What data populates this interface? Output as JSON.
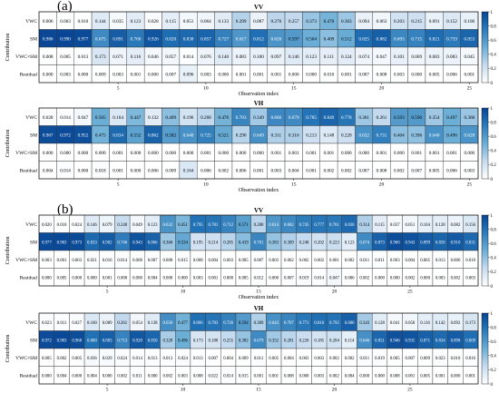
{
  "panel_labels": [
    "(a)",
    "(b)"
  ],
  "chart_data": [
    {
      "type": "heatmap",
      "panel": "(a)",
      "title": "VV",
      "xlabel": "Observation index",
      "ylabel": "Contribution",
      "rows": [
        "VWC",
        "SM",
        "VWC×SM",
        "Residual"
      ],
      "x_ticks": [
        5,
        10,
        15,
        20,
        25
      ],
      "colorbar_ticks": [
        "0",
        "0.2",
        "0.4",
        "0.6",
        "0.8",
        "1"
      ],
      "vmin": 0,
      "vmax": 1,
      "values": [
        [
          0.006,
          0.003,
          0.01,
          0.144,
          0.035,
          0.123,
          0.028,
          0.115,
          0.051,
          0.064,
          0.133,
          0.299,
          0.087,
          0.276,
          0.257,
          0.373,
          0.47,
          0.363,
          0.094,
          0.063,
          0.203,
          0.215,
          0.091,
          0.152,
          0.1
        ],
        [
          0.986,
          0.99,
          0.977,
          0.675,
          0.891,
          0.76,
          0.926,
          0.82,
          0.838,
          0.857,
          0.727,
          0.617,
          0.812,
          0.626,
          0.597,
          0.504,
          0.409,
          0.512,
          0.825,
          0.882,
          0.693,
          0.715,
          0.821,
          0.759,
          0.853
        ],
        [
          0.008,
          0.005,
          0.013,
          0.173,
          0.071,
          0.116,
          0.046,
          0.057,
          0.014,
          0.076,
          0.14,
          0.083,
          0.1,
          0.097,
          0.146,
          0.123,
          0.111,
          0.124,
          0.074,
          0.047,
          0.101,
          0.069,
          0.083,
          0.083,
          0.045
        ],
        [
          0.0,
          0.003,
          0.0,
          0.009,
          0.003,
          0.001,
          0.0,
          0.007,
          0.096,
          0.003,
          0.0,
          0.001,
          0.001,
          0.001,
          0.0,
          0.0,
          0.01,
          0.001,
          0.007,
          0.008,
          0.003,
          0.0,
          0.005,
          0.006,
          0.001
        ]
      ]
    },
    {
      "type": "heatmap",
      "panel": "(a)",
      "title": "VH",
      "xlabel": "Observation index",
      "ylabel": "Contribution",
      "rows": [
        "VWC",
        "SM",
        "VWC×SM",
        "Residual"
      ],
      "x_ticks": [
        5,
        10,
        15,
        20,
        25
      ],
      "colorbar_ticks": [
        "0",
        "0.2",
        "0.4",
        "0.6",
        "0.8",
        "1"
      ],
      "vmin": 0,
      "vmax": 1,
      "values": [
        [
          0.028,
          0.014,
          0.047,
          0.505,
          0.164,
          0.447,
          0.132,
          0.409,
          0.196,
          0.268,
          0.476,
          0.703,
          0.349,
          0.686,
          0.679,
          0.785,
          0.849,
          0.778,
          0.361,
          0.261,
          0.593,
          0.596,
          0.354,
          0.497,
          0.368
        ],
        [
          0.967,
          0.972,
          0.952,
          0.475,
          0.834,
          0.552,
          0.862,
          0.582,
          0.64,
          0.725,
          0.521,
          0.29,
          0.649,
          0.311,
          0.316,
          0.213,
          0.148,
          0.22,
          0.632,
          0.731,
          0.404,
          0.396,
          0.64,
          0.496,
          0.628
        ],
        [
          0.0,
          0.0,
          0.0,
          0.0,
          0.001,
          0.0,
          0.0,
          0.0,
          0.0,
          0.001,
          0.0,
          0.0,
          0.0,
          0.001,
          0.001,
          0.001,
          0.001,
          0.0,
          0.0,
          0.001,
          0.0,
          0.001,
          0.001,
          0.001,
          0.0
        ],
        [
          0.004,
          0.014,
          0.0,
          0.018,
          0.001,
          0.0,
          0.006,
          0.009,
          0.164,
          0.006,
          0.002,
          0.006,
          0.001,
          0.003,
          0.004,
          0.001,
          0.002,
          0.002,
          0.007,
          0.008,
          0.002,
          0.007,
          0.005,
          0.006,
          0.003
        ]
      ]
    },
    {
      "type": "heatmap",
      "panel": "(b)",
      "title": "VV",
      "xlabel": "Observation index",
      "ylabel": "Contribution",
      "rows": [
        "VWC",
        "SM",
        "VWC×SM",
        "Residual"
      ],
      "x_ticks": [
        5,
        10,
        15,
        20,
        25
      ],
      "colorbar_ticks": [
        "0",
        "0.2",
        "0.4",
        "0.6",
        "0.8",
        "1"
      ],
      "vmin": 0,
      "vmax": 1,
      "values": [
        [
          0.02,
          0.01,
          0.024,
          0.146,
          0.079,
          0.24,
          0.049,
          0.123,
          0.632,
          0.451,
          0.795,
          0.781,
          0.712,
          0.571,
          0.28,
          0.614,
          0.682,
          0.745,
          0.777,
          0.761,
          0.83,
          0.314,
          0.115,
          0.037,
          0.051,
          0.104,
          0.128,
          0.082,
          0.156
        ],
        [
          0.977,
          0.983,
          0.973,
          0.833,
          0.902,
          0.746,
          0.943,
          0.866,
          0.36,
          0.534,
          0.195,
          0.214,
          0.285,
          0.419,
          0.701,
          0.383,
          0.309,
          0.248,
          0.202,
          0.223,
          0.123,
          0.674,
          0.873,
          0.96,
          0.943,
          0.899,
          0.858,
          0.91,
          0.831
        ],
        [
          0.003,
          0.001,
          0.003,
          0.021,
          0.016,
          0.014,
          0.008,
          0.007,
          0.008,
          0.015,
          0.008,
          0.004,
          0.003,
          0.005,
          0.007,
          0.003,
          0.002,
          0.002,
          0.002,
          0.001,
          0.002,
          0.011,
          0.011,
          0.003,
          0.004,
          0.005,
          0.013,
          0.006,
          0.01
        ],
        [
          0.0,
          0.005,
          0.0,
          0.0,
          0.001,
          0.0,
          0.0,
          0.004,
          0.0,
          0.0,
          0.003,
          0.001,
          0.0,
          0.005,
          0.012,
          0.0,
          0.007,
          0.019,
          0.014,
          0.047,
          0.006,
          0.002,
          0.0,
          0.0,
          0.002,
          0.0,
          0.003,
          0.002,
          0.003
        ]
      ]
    },
    {
      "type": "heatmap",
      "panel": "(b)",
      "title": "VH",
      "xlabel": "Observation index",
      "ylabel": "Contribution",
      "rows": [
        "VWC",
        "SM",
        "VWC×SM",
        "Residual"
      ],
      "x_ticks": [
        5,
        10,
        15,
        20,
        25
      ],
      "colorbar_ticks": [
        "0",
        "0.2",
        "0.4",
        "0.6",
        "0.8",
        "1"
      ],
      "vmin": 0,
      "vmax": 1,
      "values": [
        [
          0.023,
          0.011,
          0.027,
          0.16,
          0.089,
          0.261,
          0.054,
          0.138,
          0.656,
          0.477,
          0.806,
          0.783,
          0.726,
          0.594,
          0.309,
          0.643,
          0.707,
          0.771,
          0.81,
          0.792,
          0.88,
          0.343,
          0.128,
          0.041,
          0.058,
          0.116,
          0.142,
          0.092,
          0.173
        ],
        [
          0.972,
          0.983,
          0.968,
          0.8,
          0.883,
          0.713,
          0.92,
          0.85,
          0.328,
          0.496,
          0.173,
          0.188,
          0.255,
          0.382,
          0.679,
          0.352,
          0.281,
          0.226,
          0.185,
          0.204,
          0.114,
          0.646,
          0.851,
          0.946,
          0.935,
          0.871,
          0.834,
          0.898,
          0.809
        ],
        [
          0.005,
          0.002,
          0.005,
          0.036,
          0.029,
          0.024,
          0.014,
          0.013,
          0.013,
          0.024,
          0.013,
          0.007,
          0.004,
          0.009,
          0.011,
          0.005,
          0.004,
          0.003,
          0.003,
          0.002,
          0.002,
          0.011,
          0.019,
          0.005,
          0.007,
          0.009,
          0.023,
          0.01,
          0.016
        ],
        [
          0.0,
          0.004,
          0.0,
          0.004,
          0.0,
          0.002,
          0.011,
          0.0,
          0.002,
          0.003,
          0.008,
          0.022,
          0.014,
          0.015,
          0.001,
          0.001,
          0.008,
          0.0,
          0.003,
          0.002,
          0.004,
          0.0,
          0.0,
          0.008,
          0.001,
          0.005,
          0.001,
          0.0,
          0.001
        ]
      ]
    }
  ]
}
